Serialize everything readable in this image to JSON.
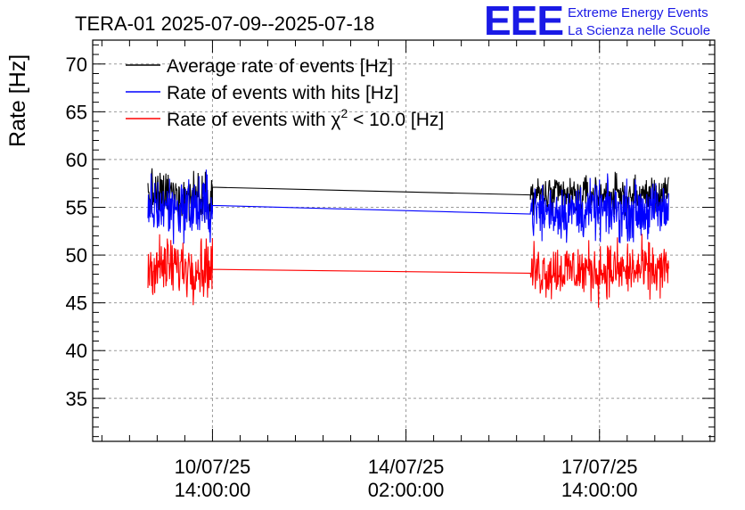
{
  "chart_data": {
    "type": "line",
    "title": "TERA-01 2025-07-09--2025-07-18",
    "ylabel": "Rate [Hz]",
    "ylim": [
      30.5,
      72.5
    ],
    "y_ticks": [
      35,
      40,
      45,
      50,
      55,
      60,
      65,
      70
    ],
    "x_ticks": [
      {
        "line1": "10/07/25",
        "line2": "14:00:00",
        "t": 30
      },
      {
        "line1": "14/07/25",
        "line2": "02:00:00",
        "t": 114
      },
      {
        "line1": "17/07/25",
        "line2": "14:00:00",
        "t": 198
      }
    ],
    "xlim": [
      -22,
      248
    ],
    "grid": true,
    "legend_position": "top-left",
    "series": [
      {
        "name": "Average rate of events [Hz]",
        "name_suffix": "",
        "color": "#000000",
        "segments": [
          {
            "t_start": 2,
            "t_end": 30,
            "mean": 56.3,
            "noise": 1.1
          },
          {
            "t_start": 30,
            "t_end": 168,
            "mean_start": 57.1,
            "mean_end": 56.3,
            "noise": 0
          },
          {
            "t_start": 168,
            "t_end": 228,
            "mean": 56.2,
            "noise": 0.9
          }
        ]
      },
      {
        "name": "Rate of events with hits [Hz]",
        "name_suffix": "",
        "color": "#0000ff",
        "segments": [
          {
            "t_start": 2,
            "t_end": 30,
            "mean": 55.0,
            "noise": 1.5
          },
          {
            "t_start": 30,
            "t_end": 168,
            "mean_start": 55.2,
            "mean_end": 54.3,
            "noise": 0
          },
          {
            "t_start": 168,
            "t_end": 228,
            "mean": 54.6,
            "noise": 1.3
          }
        ]
      },
      {
        "name": "Rate of events with χ",
        "name_sup": "2",
        "name_suffix": " < 10.0 [Hz]",
        "color": "#ff0000",
        "segments": [
          {
            "t_start": 2,
            "t_end": 30,
            "mean": 48.8,
            "noise": 1.4
          },
          {
            "t_start": 30,
            "t_end": 168,
            "mean_start": 48.5,
            "mean_end": 48.1,
            "noise": 0
          },
          {
            "t_start": 168,
            "t_end": 228,
            "mean": 48.4,
            "noise": 1.3
          }
        ]
      }
    ]
  },
  "logo": {
    "mark": "EEE",
    "line1": "Extreme Energy Events",
    "line2": "La Scienza nelle Scuole"
  }
}
